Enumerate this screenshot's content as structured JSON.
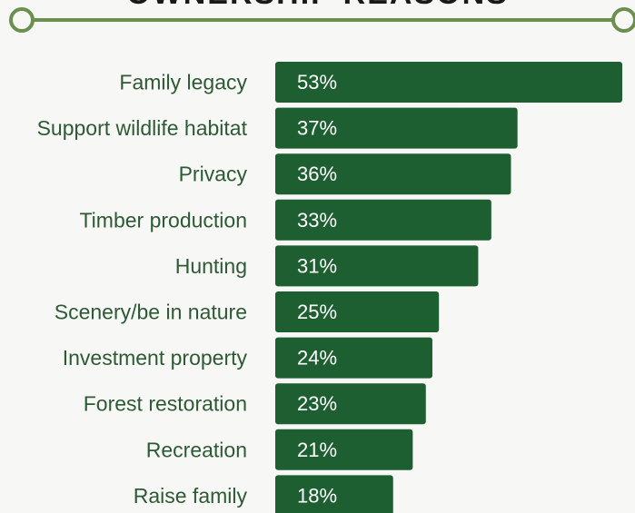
{
  "title": "OWNERSHIP REASONS",
  "colors": {
    "bar": "#1e5f32",
    "rule": "#6b8f4e",
    "label": "#2d5a35",
    "value_text": "#ffffff",
    "background": "#f7f7f5"
  },
  "chart_data": {
    "type": "bar",
    "orientation": "horizontal",
    "title": "OWNERSHIP REASONS",
    "categories": [
      "Family legacy",
      "Support wildlife habitat",
      "Privacy",
      "Timber production",
      "Hunting",
      "Scenery/be in nature",
      "Investment property",
      "Forest restoration",
      "Recreation",
      "Raise family"
    ],
    "values": [
      53,
      37,
      36,
      33,
      31,
      25,
      24,
      23,
      21,
      18
    ],
    "value_labels": [
      "53%",
      "37%",
      "36%",
      "33%",
      "31%",
      "25%",
      "24%",
      "23%",
      "21%",
      "18%"
    ],
    "unit": "%",
    "xlim": [
      0,
      53
    ],
    "grid": false,
    "legend": "none"
  }
}
